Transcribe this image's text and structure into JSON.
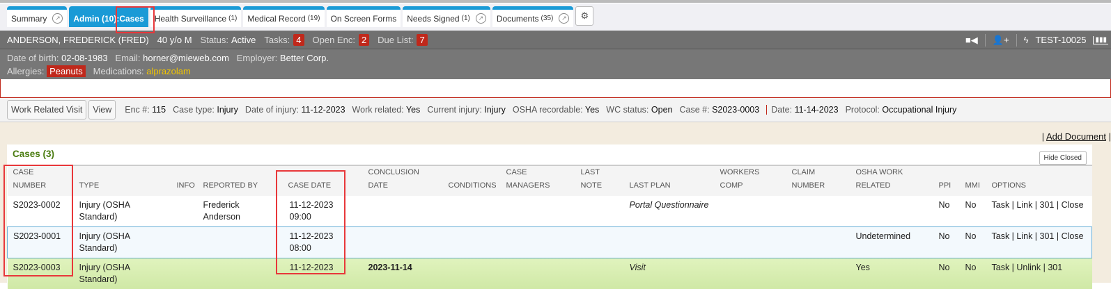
{
  "tabs": [
    {
      "label": "Summary",
      "count": ""
    },
    {
      "label": "Admin (10):Cases",
      "count": ""
    },
    {
      "label": "Health Surveillance",
      "count": "(1)"
    },
    {
      "label": "Medical Record",
      "count": "(19)"
    },
    {
      "label": "On Screen Forms",
      "count": ""
    },
    {
      "label": "Needs Signed",
      "count": "(1)"
    },
    {
      "label": "Documents",
      "count": "(35)"
    }
  ],
  "patient": {
    "name": "ANDERSON, FREDERICK (FRED)",
    "age": "40 y/o M",
    "status_label": "Status:",
    "status": "Active",
    "tasks_label": "Tasks:",
    "tasks": "4",
    "open_enc_label": "Open Enc:",
    "open_enc": "2",
    "due_list_label": "Due List:",
    "due_list": "7",
    "id": "TEST-10025",
    "dob_label": "Date of birth:",
    "dob": "02-08-1983",
    "email_label": "Email:",
    "email": "horner@mieweb.com",
    "employer_label": "Employer:",
    "employer": "Better Corp.",
    "allergies_label": "Allergies:",
    "allergies": "Peanuts",
    "medications_label": "Medications:",
    "medications": "alprazolam"
  },
  "encounter": {
    "work_related_visit": "Work Related Visit",
    "view": "View",
    "fields": [
      [
        "Enc #:",
        "115"
      ],
      [
        "Case type:",
        "Injury"
      ],
      [
        "Date of injury:",
        "11-12-2023"
      ],
      [
        "Work related:",
        "Yes"
      ],
      [
        "Current injury:",
        "Injury"
      ],
      [
        "OSHA recordable:",
        "Yes"
      ],
      [
        "WC status:",
        "Open"
      ],
      [
        "Case #:",
        "S2023-0003"
      ],
      [
        "Date:",
        "11-14-2023"
      ],
      [
        "Protocol:",
        "Occupational Injury"
      ]
    ]
  },
  "add_document": "Add Document",
  "cases": {
    "title": "Cases (3)",
    "hide_closed": "Hide Closed",
    "columns": [
      "CASE NUMBER",
      "TYPE",
      "INFO",
      "REPORTED BY",
      "CASE DATE",
      "CONCLUSION DATE",
      "CONDITIONS",
      "CASE MANAGERS",
      "LAST NOTE",
      "LAST PLAN",
      "WORKERS COMP",
      "CLAIM NUMBER",
      "OSHA WORK RELATED",
      "PPI",
      "MMI",
      "OPTIONS"
    ],
    "rows": [
      [
        "S2023-0002",
        "Injury (OSHA Standard)",
        "",
        "Frederick Anderson",
        "11-12-2023 09:00",
        "",
        "",
        "",
        "",
        "Portal Questionnaire",
        "",
        "",
        "",
        "No",
        "No",
        "Task | Link | 301 | Close"
      ],
      [
        "S2023-0001",
        "Injury (OSHA Standard)",
        "",
        "",
        "11-12-2023 08:00",
        "",
        "",
        "",
        "",
        "",
        "",
        "",
        "Undetermined",
        "No",
        "No",
        "Task | Link | 301 | Close"
      ],
      [
        "S2023-0003",
        "Injury (OSHA Standard)",
        "",
        "",
        "11-12-2023",
        "2023-11-14",
        "",
        "",
        "",
        "Visit",
        "",
        "",
        "Yes",
        "No",
        "No",
        "Task | Unlink | 301"
      ]
    ]
  }
}
